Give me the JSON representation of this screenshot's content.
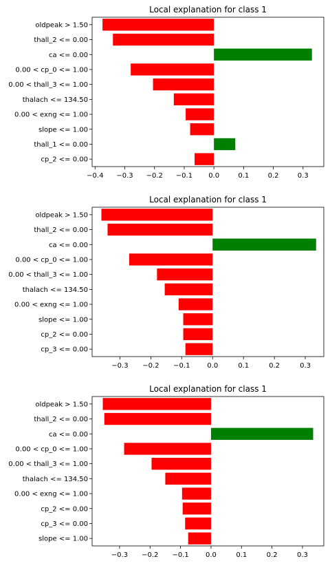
{
  "chart_data": [
    {
      "type": "bar",
      "orientation": "horizontal",
      "title": "Local explanation for class 1",
      "xlim": [
        -0.41,
        0.37
      ],
      "xticks": [
        -0.4,
        -0.3,
        -0.2,
        -0.1,
        0.0,
        0.1,
        0.2,
        0.3
      ],
      "xtick_labels": [
        "−0.4",
        "−0.3",
        "−0.2",
        "−0.1",
        "0.0",
        "0.1",
        "0.2",
        "0.3"
      ],
      "categories": [
        "oldpeak > 1.50",
        "thall_2 <= 0.00",
        "ca <= 0.00",
        "0.00 < cp_0 <= 1.00",
        "0.00 < thall_3 <= 1.00",
        "thalach <= 134.50",
        "0.00 < exng <= 1.00",
        "slope <= 1.00",
        "thall_1 <= 0.00",
        "cp_2 <= 0.00"
      ],
      "values": [
        -0.375,
        -0.34,
        0.33,
        -0.28,
        -0.205,
        -0.135,
        -0.095,
        -0.08,
        0.072,
        -0.065
      ],
      "positive_color": "#008000",
      "negative_color": "#ff0000",
      "grid": false
    },
    {
      "type": "bar",
      "orientation": "horizontal",
      "title": "Local explanation for class 1",
      "xlim": [
        -0.39,
        0.36
      ],
      "xticks": [
        -0.3,
        -0.2,
        -0.1,
        0.0,
        0.1,
        0.2,
        0.3
      ],
      "xtick_labels": [
        "−0.3",
        "−0.2",
        "−0.1",
        "0.0",
        "0.1",
        "0.2",
        "0.3"
      ],
      "categories": [
        "oldpeak > 1.50",
        "thall_2 <= 0.00",
        "ca <= 0.00",
        "0.00 < cp_0 <= 1.00",
        "0.00 < thall_3 <= 1.00",
        "thalach <= 134.50",
        "0.00 < exng <= 1.00",
        "slope <= 1.00",
        "cp_2 <= 0.00",
        "cp_3 <= 0.00"
      ],
      "values": [
        -0.36,
        -0.34,
        0.335,
        -0.27,
        -0.18,
        -0.155,
        -0.11,
        -0.095,
        -0.095,
        -0.088
      ],
      "positive_color": "#008000",
      "negative_color": "#ff0000",
      "grid": false
    },
    {
      "type": "bar",
      "orientation": "horizontal",
      "title": "Local explanation for class 1",
      "xlim": [
        -0.39,
        0.37
      ],
      "xticks": [
        -0.3,
        -0.2,
        -0.1,
        0.0,
        0.1,
        0.2,
        0.3
      ],
      "xtick_labels": [
        "−0.3",
        "−0.2",
        "−0.1",
        "0.0",
        "0.1",
        "0.2",
        "0.3"
      ],
      "categories": [
        "oldpeak > 1.50",
        "thall_2 <= 0.00",
        "ca <= 0.00",
        "0.00 < cp_0 <= 1.00",
        "0.00 < thall_3 <= 1.00",
        "thalach <= 134.50",
        "0.00 < exng <= 1.00",
        "cp_2 <= 0.00",
        "cp_3 <= 0.00",
        "slope <= 1.00"
      ],
      "values": [
        -0.355,
        -0.35,
        0.335,
        -0.285,
        -0.195,
        -0.15,
        -0.095,
        -0.093,
        -0.085,
        -0.075
      ],
      "positive_color": "#008000",
      "negative_color": "#ff0000",
      "grid": false
    }
  ]
}
